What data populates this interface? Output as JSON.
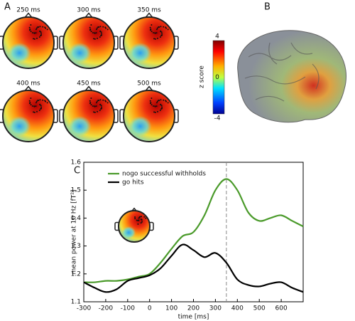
{
  "panels": {
    "a": "A",
    "b": "B",
    "c": "C"
  },
  "topomaps": {
    "times": [
      "250 ms",
      "300 ms",
      "350 ms",
      "400 ms",
      "450 ms",
      "500 ms"
    ]
  },
  "colorbar": {
    "label": "z score",
    "lim": [
      -4,
      4
    ],
    "ticks": [
      4,
      0,
      -4
    ]
  },
  "chart_data": {
    "type": "line",
    "xlabel": "time [ms]",
    "ylabel": "mean power at 10 Hz [fT²]",
    "x": [
      -300,
      -250,
      -200,
      -150,
      -100,
      -50,
      0,
      50,
      100,
      150,
      200,
      250,
      300,
      350,
      400,
      450,
      500,
      550,
      600,
      650,
      700
    ],
    "series": [
      {
        "name": "nogo successful withholds",
        "color": "#4a9a2a",
        "values": [
          1.17,
          1.17,
          1.175,
          1.175,
          1.18,
          1.19,
          1.2,
          1.24,
          1.29,
          1.335,
          1.35,
          1.41,
          1.5,
          1.54,
          1.5,
          1.42,
          1.39,
          1.4,
          1.41,
          1.39,
          1.37
        ]
      },
      {
        "name": "go hits",
        "color": "#000000",
        "values": [
          1.17,
          1.15,
          1.135,
          1.145,
          1.175,
          1.185,
          1.195,
          1.22,
          1.265,
          1.305,
          1.285,
          1.26,
          1.275,
          1.24,
          1.18,
          1.16,
          1.155,
          1.165,
          1.17,
          1.15,
          1.135
        ]
      }
    ],
    "xlim": [
      -300,
      700
    ],
    "xticks": [
      -300,
      -200,
      -100,
      0,
      100,
      200,
      300,
      400,
      500,
      600
    ],
    "ylim": [
      1.1,
      1.6
    ],
    "yticks": [
      1.1,
      1.2,
      1.3,
      1.4,
      1.5,
      1.6
    ],
    "vline_x": 350,
    "legend": "upper-left"
  }
}
